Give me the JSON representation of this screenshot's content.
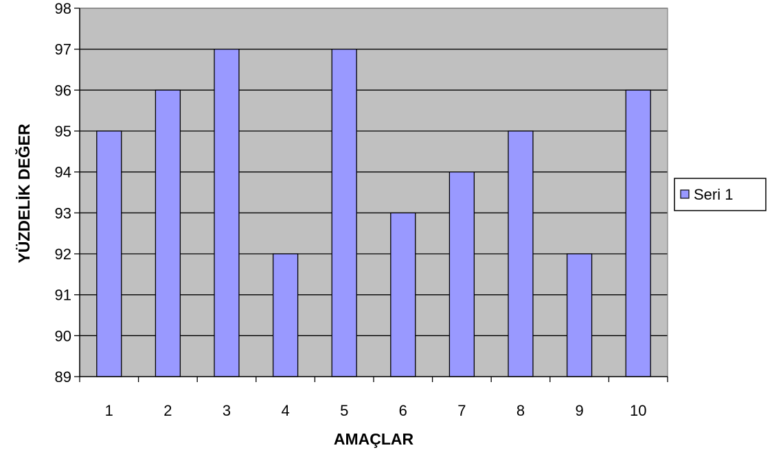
{
  "chart_data": {
    "type": "bar",
    "categories": [
      "1",
      "2",
      "3",
      "4",
      "5",
      "6",
      "7",
      "8",
      "9",
      "10"
    ],
    "series": [
      {
        "name": "Seri 1",
        "values": [
          95,
          96,
          97,
          92,
          97,
          93,
          94,
          95,
          92,
          96
        ],
        "color": "#9999ff"
      }
    ],
    "xlabel": "AMAÇLAR",
    "ylabel": "YÜZDELİK DEĞER",
    "ylim": [
      89,
      98
    ],
    "yticks": [
      89,
      90,
      91,
      92,
      93,
      94,
      95,
      96,
      97,
      98
    ],
    "grid": true,
    "plot_background": "#c0c0c0",
    "legend_position": "right"
  }
}
